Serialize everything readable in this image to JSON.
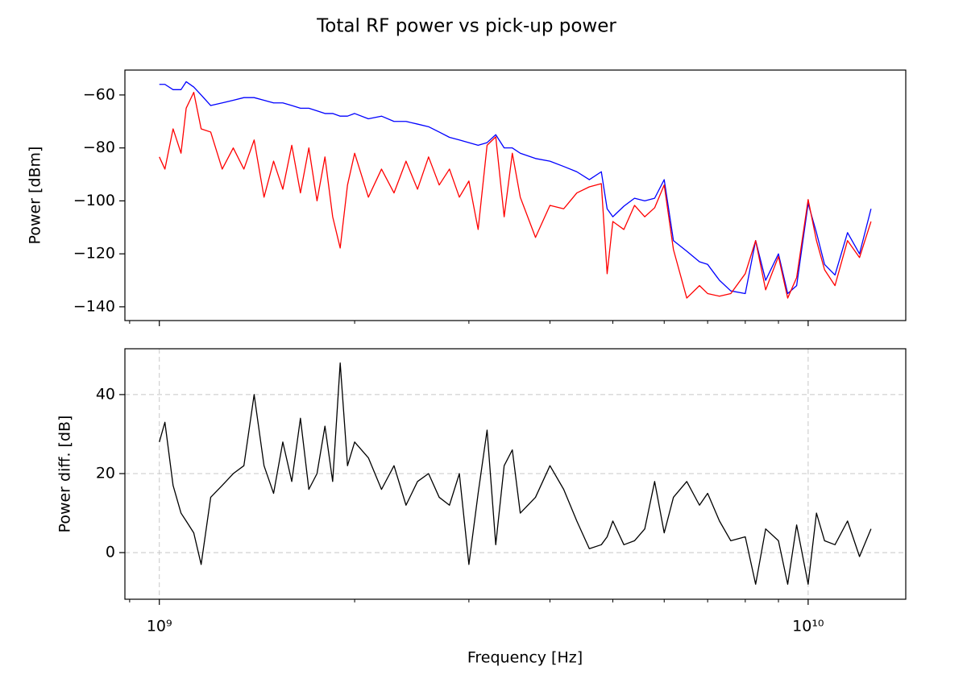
{
  "title": "Total RF power vs pick-up power",
  "chart_data": [
    {
      "type": "line",
      "ylabel": "Power [dBm]",
      "xscale": "log",
      "grid": false,
      "xlim": [
        885000000.0,
        14140000000.0
      ],
      "ylim": [
        -145.2,
        -50.6
      ],
      "yticks": [
        {
          "value": -140,
          "label": "−140"
        },
        {
          "value": -120,
          "label": "−120"
        },
        {
          "value": -100,
          "label": "−100"
        },
        {
          "value": -80,
          "label": "−80"
        },
        {
          "value": -60,
          "label": "−60"
        }
      ],
      "x": [
        1000000000.0,
        1020000000.0,
        1050000000.0,
        1080000000.0,
        1100000000.0,
        1130000000.0,
        1160000000.0,
        1200000000.0,
        1250000000.0,
        1300000000.0,
        1350000000.0,
        1400000000.0,
        1450000000.0,
        1500000000.0,
        1550000000.0,
        1600000000.0,
        1650000000.0,
        1700000000.0,
        1750000000.0,
        1800000000.0,
        1850000000.0,
        1900000000.0,
        1950000000.0,
        2000000000.0,
        2100000000.0,
        2200000000.0,
        2300000000.0,
        2400000000.0,
        2500000000.0,
        2600000000.0,
        2700000000.0,
        2800000000.0,
        2900000000.0,
        3000000000.0,
        3100000000.0,
        3200000000.0,
        3300000000.0,
        3400000000.0,
        3500000000.0,
        3600000000.0,
        3800000000.0,
        4000000000.0,
        4200000000.0,
        4400000000.0,
        4600000000.0,
        4800000000.0,
        4900000000.0,
        5000000000.0,
        5200000000.0,
        5400000000.0,
        5600000000.0,
        5800000000.0,
        6000000000.0,
        6200000000.0,
        6500000000.0,
        6800000000.0,
        7000000000.0,
        7300000000.0,
        7600000000.0,
        8000000000.0,
        8300000000.0,
        8600000000.0,
        9000000000.0,
        9300000000.0,
        9600000000.0,
        10000000000.0,
        10300000000.0,
        10600000000.0,
        11000000000.0,
        11500000000.0,
        12000000000.0,
        12500000000.0
      ],
      "series": [
        {
          "color": "#0000ff",
          "values": [
            -56,
            -56,
            -58,
            -58,
            -55,
            -57,
            -60,
            -64,
            -63,
            -62,
            -61,
            -61,
            -62,
            -63,
            -63,
            -64,
            -65,
            -65,
            -66,
            -67,
            -67,
            -68,
            -68,
            -67,
            -69,
            -68,
            -70,
            -70,
            -71,
            -72,
            -74,
            -76,
            -77,
            -78,
            -79,
            -78,
            -75,
            -80,
            -80,
            -82,
            -84,
            -85,
            -87,
            -89,
            -92,
            -89,
            -103,
            -106,
            -102,
            -99,
            -100,
            -99,
            -92,
            -115,
            -119,
            -123,
            -124,
            -130,
            -134,
            -135,
            -115,
            -130,
            -120,
            -135,
            -132,
            -101,
            -112,
            -124,
            -128,
            -112,
            -120,
            -103
          ]
        },
        {
          "color": "#ff0000",
          "values": [
            -83.4,
            -88,
            -72.8,
            -82,
            -65,
            -59,
            -72.8,
            -74,
            -88,
            -80,
            -88,
            -77,
            -98.6,
            -85,
            -95.6,
            -79,
            -97,
            -80,
            -100,
            -83.4,
            -106,
            -117.8,
            -94,
            -82,
            -98.6,
            -88,
            -97,
            -85,
            -95.6,
            -83.4,
            -94,
            -88,
            -98.6,
            -92.5,
            -110.8,
            -79,
            -75.8,
            -106,
            -82,
            -98.6,
            -113.8,
            -101.7,
            -103,
            -97,
            -94.7,
            -93.5,
            -127.5,
            -107.8,
            -110.8,
            -101.7,
            -106,
            -102.6,
            -94,
            -118.4,
            -136.7,
            -132,
            -135,
            -136,
            -135,
            -127.5,
            -115,
            -133.6,
            -121,
            -136.7,
            -129,
            -99.5,
            -115,
            -126,
            -132,
            -115,
            -121.4,
            -107.8
          ]
        }
      ]
    },
    {
      "type": "line",
      "ylabel": "Power diff. [dB]",
      "xlabel": "Frequency [Hz]",
      "xscale": "log",
      "grid": true,
      "xlim": [
        885000000.0,
        14140000000.0
      ],
      "ylim": [
        -11.8,
        51.6
      ],
      "yticks": [
        0,
        20,
        40
      ],
      "xticks": [
        {
          "value": 1000000000.0,
          "label": "10⁹"
        },
        {
          "value": 10000000000.0,
          "label": "10¹⁰"
        }
      ],
      "xminorticks": [
        900000000.0,
        2000000000.0,
        3000000000.0,
        4000000000.0,
        5000000000.0,
        6000000000.0,
        7000000000.0,
        8000000000.0,
        9000000000.0
      ],
      "x": [
        1000000000.0,
        1020000000.0,
        1050000000.0,
        1080000000.0,
        1100000000.0,
        1130000000.0,
        1160000000.0,
        1200000000.0,
        1250000000.0,
        1300000000.0,
        1350000000.0,
        1400000000.0,
        1450000000.0,
        1500000000.0,
        1550000000.0,
        1600000000.0,
        1650000000.0,
        1700000000.0,
        1750000000.0,
        1800000000.0,
        1850000000.0,
        1900000000.0,
        1950000000.0,
        2000000000.0,
        2100000000.0,
        2200000000.0,
        2300000000.0,
        2400000000.0,
        2500000000.0,
        2600000000.0,
        2700000000.0,
        2800000000.0,
        2900000000.0,
        3000000000.0,
        3100000000.0,
        3200000000.0,
        3300000000.0,
        3400000000.0,
        3500000000.0,
        3600000000.0,
        3800000000.0,
        4000000000.0,
        4200000000.0,
        4400000000.0,
        4600000000.0,
        4800000000.0,
        4900000000.0,
        5000000000.0,
        5200000000.0,
        5400000000.0,
        5600000000.0,
        5800000000.0,
        6000000000.0,
        6200000000.0,
        6500000000.0,
        6800000000.0,
        7000000000.0,
        7300000000.0,
        7600000000.0,
        8000000000.0,
        8300000000.0,
        8600000000.0,
        9000000000.0,
        9300000000.0,
        9600000000.0,
        10000000000.0,
        10300000000.0,
        10600000000.0,
        11000000000.0,
        11500000000.0,
        12000000000.0,
        12500000000.0
      ],
      "series": [
        {
          "color": "#000000",
          "values": [
            28,
            33,
            17,
            10,
            8,
            5,
            -3,
            14,
            17,
            20,
            22,
            40,
            22,
            15,
            28,
            18,
            34,
            16,
            20,
            32,
            18,
            48,
            22,
            28,
            24,
            16,
            22,
            12,
            18,
            20,
            14,
            12,
            20,
            -3,
            15,
            31,
            2,
            22,
            26,
            10,
            14,
            22,
            16,
            8,
            1,
            2,
            4,
            8,
            2,
            3,
            6,
            18,
            5,
            14,
            18,
            12,
            15,
            8,
            3,
            4,
            -8,
            6,
            3,
            -8,
            7,
            -8,
            10,
            3,
            2,
            8,
            -1,
            6
          ]
        }
      ]
    }
  ]
}
